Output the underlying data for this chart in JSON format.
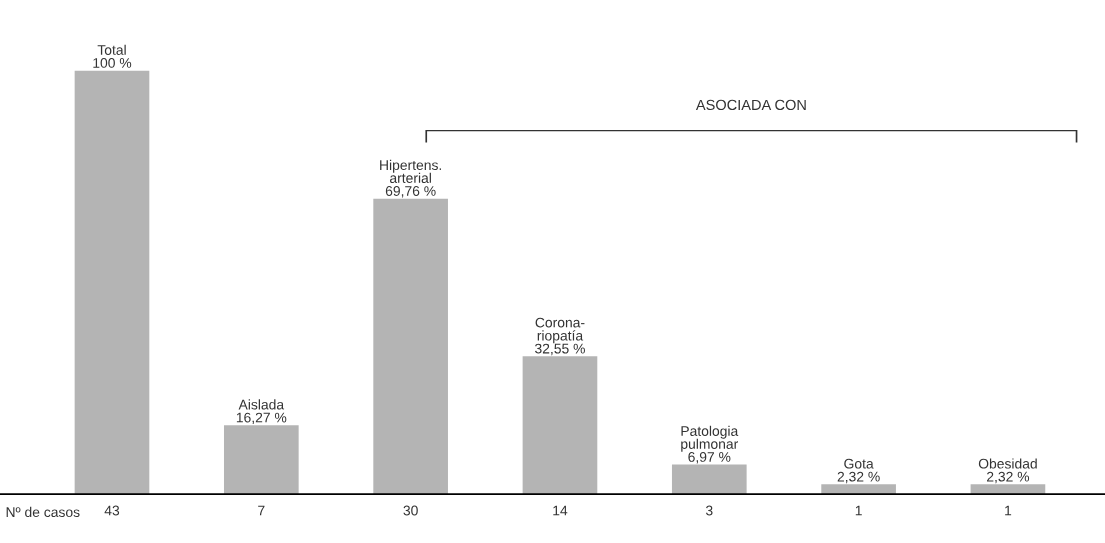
{
  "chart_data": {
    "type": "bar",
    "categories": [
      "Total",
      "Aislada",
      "Hipertens.\narterial",
      "Corona-\nriopatía",
      "Patologia\npulmonar",
      "Gota",
      "Obesidad"
    ],
    "values": [
      100,
      16.27,
      69.76,
      32.55,
      6.97,
      2.32,
      2.32
    ],
    "value_labels": [
      "100 %",
      "16,27 %",
      "69,76 %",
      "32,55 %",
      "6,97 %",
      "2,32 %",
      "2,32 %"
    ],
    "color": "#b4b4b4",
    "tick_labels": false,
    "grid": false,
    "annotations": [
      "ASOCIADA CON",
      "Nº de casos",
      "43",
      "7",
      "30",
      "14",
      "3",
      "1",
      "1"
    ]
  }
}
